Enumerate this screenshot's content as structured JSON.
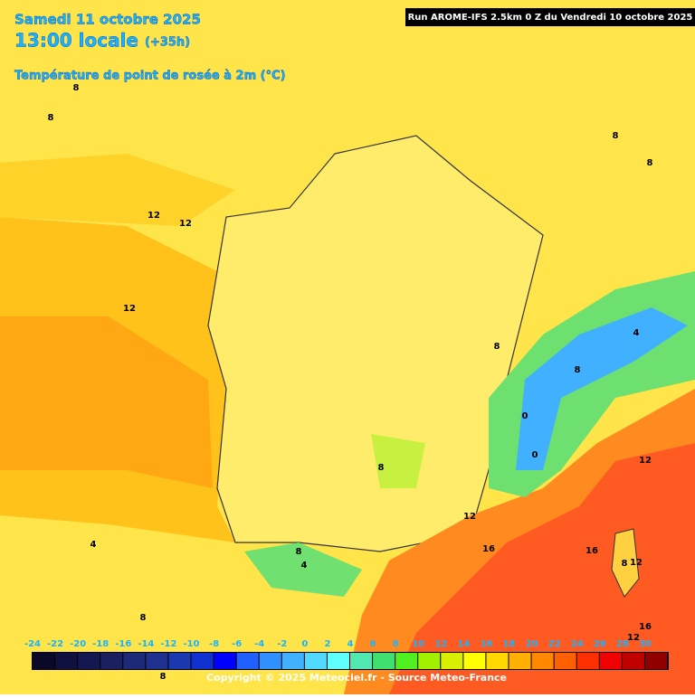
{
  "header": {
    "date": "Samedi 11 octobre 2025",
    "time": "13:00 locale",
    "lead": "(+35h)",
    "field": "Température de point de rosée à 2m (°C)",
    "run": "Run AROME-IFS 2.5km 0 Z du Vendredi 10 octobre 2025"
  },
  "contour_labels": [
    "8",
    "8",
    "12",
    "12",
    "12",
    "8",
    "8",
    "8",
    "8",
    "4",
    "0",
    "0",
    "8",
    "12",
    "16",
    "16",
    "12",
    "8",
    "12",
    "8",
    "4",
    "4",
    "8",
    "16",
    "12",
    "8"
  ],
  "colorbar": {
    "ticks": [
      -24,
      -22,
      -20,
      -18,
      -16,
      -14,
      -12,
      -10,
      -8,
      -6,
      -4,
      -2,
      0,
      2,
      4,
      6,
      8,
      10,
      12,
      14,
      16,
      18,
      20,
      22,
      24,
      26,
      28,
      30
    ],
    "colors": [
      "#0a0a28",
      "#101040",
      "#141850",
      "#1a2060",
      "#1c2a78",
      "#1e3090",
      "#1a38b0",
      "#1030d0",
      "#0000ff",
      "#2060ff",
      "#3090ff",
      "#40b0ff",
      "#50d8ff",
      "#60ffff",
      "#50e8b0",
      "#40e070",
      "#50f020",
      "#a0f000",
      "#d8f000",
      "#ffff00",
      "#ffd800",
      "#ffb000",
      "#ff8800",
      "#ff6000",
      "#ff3000",
      "#f00000",
      "#c00000",
      "#900000"
    ]
  },
  "footer": {
    "copyright": "Copyright © 2025 Meteociel.fr - Source Meteo-France"
  }
}
